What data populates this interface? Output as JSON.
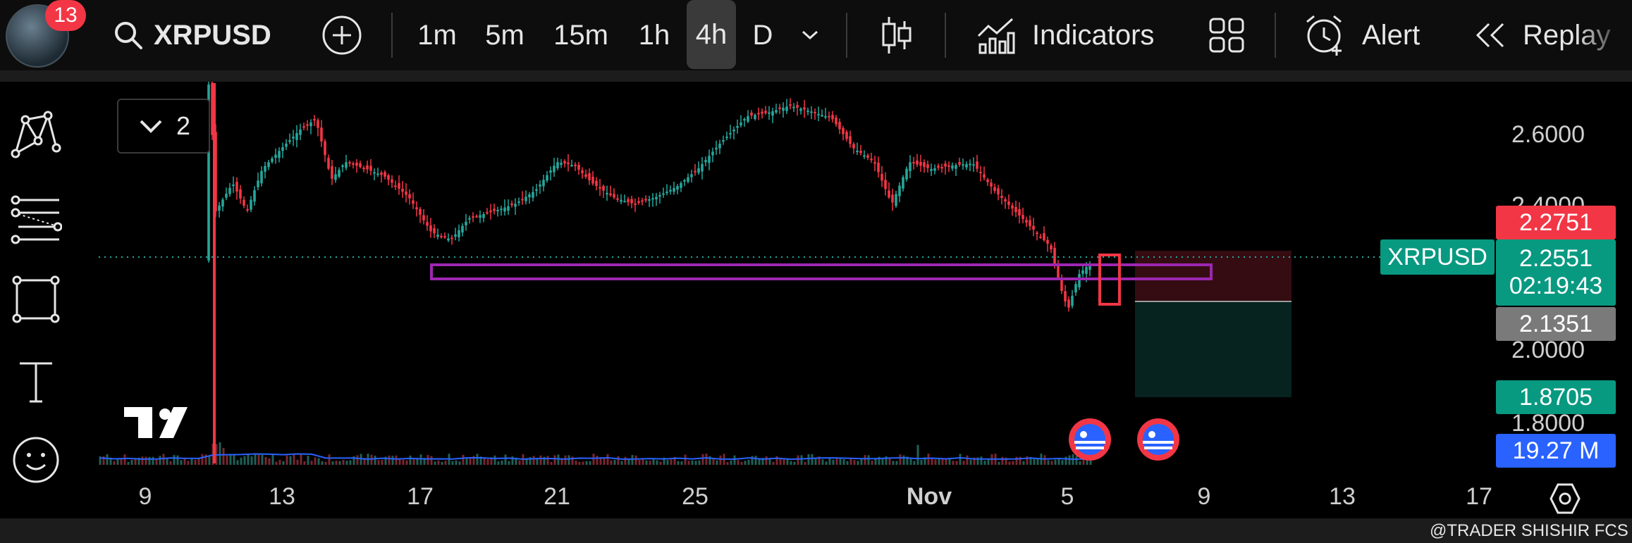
{
  "header": {
    "notification_count": "13",
    "symbol": "XRPUSD",
    "timeframes": [
      "1m",
      "5m",
      "15m",
      "1h",
      "4h",
      "D"
    ],
    "active_timeframe": "4h",
    "indicators_label": "Indicators",
    "alert_label": "Alert",
    "replay_label": "Replay"
  },
  "chart": {
    "layout_count": "2",
    "symbol_label": "XRPUSD",
    "price_levels": [
      "2.6000",
      "2.4000",
      "2.0000",
      "1.8000"
    ],
    "tags": {
      "stop": "2.2751",
      "current": "2.2551",
      "countdown": "02:19:43",
      "entry": "2.1351",
      "target": "1.8705",
      "volume": "19.27 M"
    },
    "x_labels": [
      "9",
      "13",
      "17",
      "21",
      "25",
      "Nov",
      "5",
      "9",
      "13",
      "17"
    ],
    "watermark": "@TRADER SHISHIR FCS"
  },
  "colors": {
    "up": "#26a69a",
    "down": "#f23645",
    "accent_green": "#089981",
    "stop_red": "#f23645",
    "volume_blue": "#2962ff",
    "zone_purple": "#9c27b0"
  }
}
